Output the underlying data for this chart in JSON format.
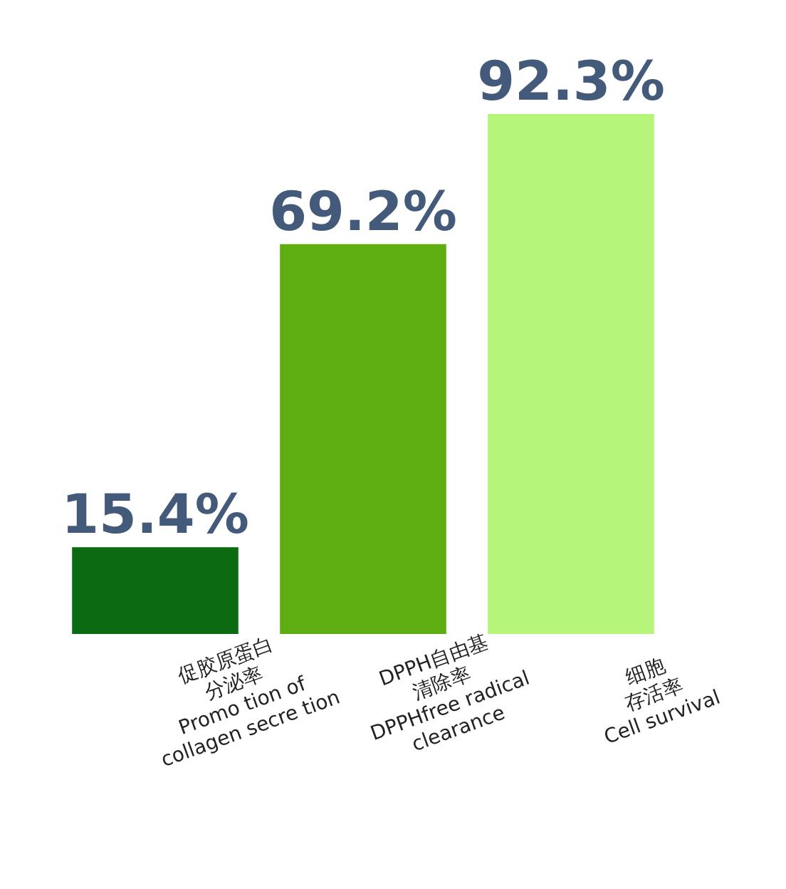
{
  "chart_data": {
    "type": "bar",
    "categories": [
      "促胶原蛋白\n分泌率\nPromo tion of\ncollagen secre tion",
      "DPPH自由基\n清除率\nDPPHfree radical\nclearance",
      "细胞\n存活率\nCell survival"
    ],
    "values": [
      15.4,
      69.2,
      92.3
    ],
    "colors": [
      "#0b6b13",
      "#5eae12",
      "#b4f57a"
    ],
    "value_labels": [
      "15.4%",
      "69.2%",
      "92.3%"
    ]
  }
}
